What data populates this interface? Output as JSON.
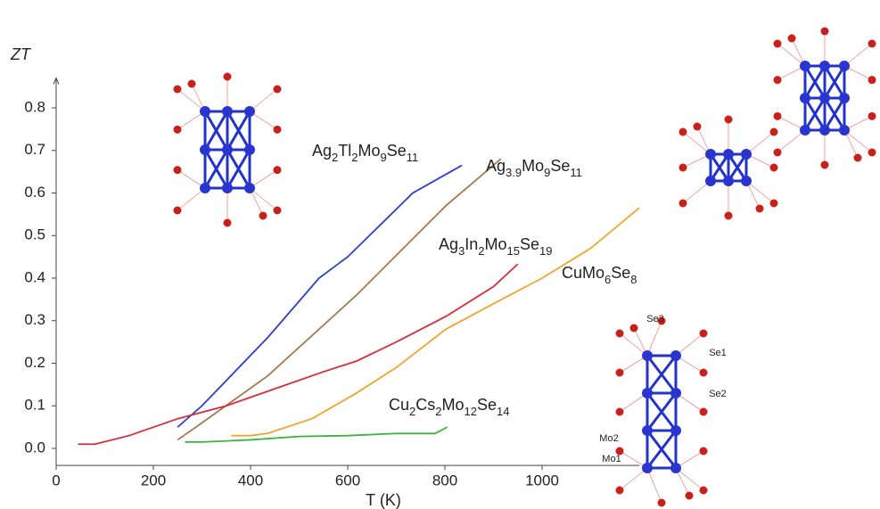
{
  "chart_data": {
    "type": "line",
    "y_label": "ZT",
    "x_label": "T (K)",
    "xlim": [
      0,
      1200
    ],
    "ylim": [
      -0.04,
      0.87
    ],
    "xticks": [
      0,
      200,
      400,
      600,
      800,
      1000
    ],
    "yticks": [
      {
        "value": 0,
        "label": "0.0"
      },
      0.1,
      0.2,
      0.3,
      0.4,
      0.5,
      0.6,
      0.7,
      0.8
    ],
    "series": [
      {
        "name": "Ag2Tl2Mo9Se11",
        "color": "#2b3fc6",
        "x": [
          250,
          300,
          435,
          541,
          600,
          734,
          835
        ],
        "values": [
          0.05,
          0.1,
          0.26,
          0.4,
          0.45,
          0.6,
          0.665
        ]
      },
      {
        "name": "Ag3.9Mo9Se11",
        "color": "#a67852",
        "x": [
          250,
          300,
          435,
          618,
          802,
          915
        ],
        "values": [
          0.02,
          0.06,
          0.17,
          0.36,
          0.57,
          0.68
        ]
      },
      {
        "name": "Ag3In2Mo15Se19",
        "color": "#d92b3a",
        "x": [
          45,
          80,
          150,
          251,
          350,
          450,
          550,
          618,
          700,
          802,
          900,
          950
        ],
        "values": [
          0.01,
          0.01,
          0.03,
          0.07,
          0.1,
          0.14,
          0.18,
          0.205,
          0.25,
          0.31,
          0.38,
          0.433
        ]
      },
      {
        "name": "CuMo6Se8",
        "color": "#f0a52e",
        "x": [
          360,
          400,
          435,
          527,
          618,
          700,
          802,
          900,
          1000,
          1100,
          1200
        ],
        "values": [
          0.03,
          0.03,
          0.035,
          0.07,
          0.13,
          0.19,
          0.28,
          0.34,
          0.4,
          0.47,
          0.565
        ]
      },
      {
        "name": "Cu2Cs2Mo12Se14",
        "color": "#3ab53c",
        "x": [
          265,
          300,
          400,
          500,
          600,
          700,
          780,
          805
        ],
        "values": [
          0.015,
          0.015,
          0.02,
          0.028,
          0.03,
          0.035,
          0.035,
          0.05
        ]
      }
    ],
    "annotations": [
      "Se3",
      "Se1",
      "Se2",
      "Mo2",
      "Mo1"
    ]
  }
}
